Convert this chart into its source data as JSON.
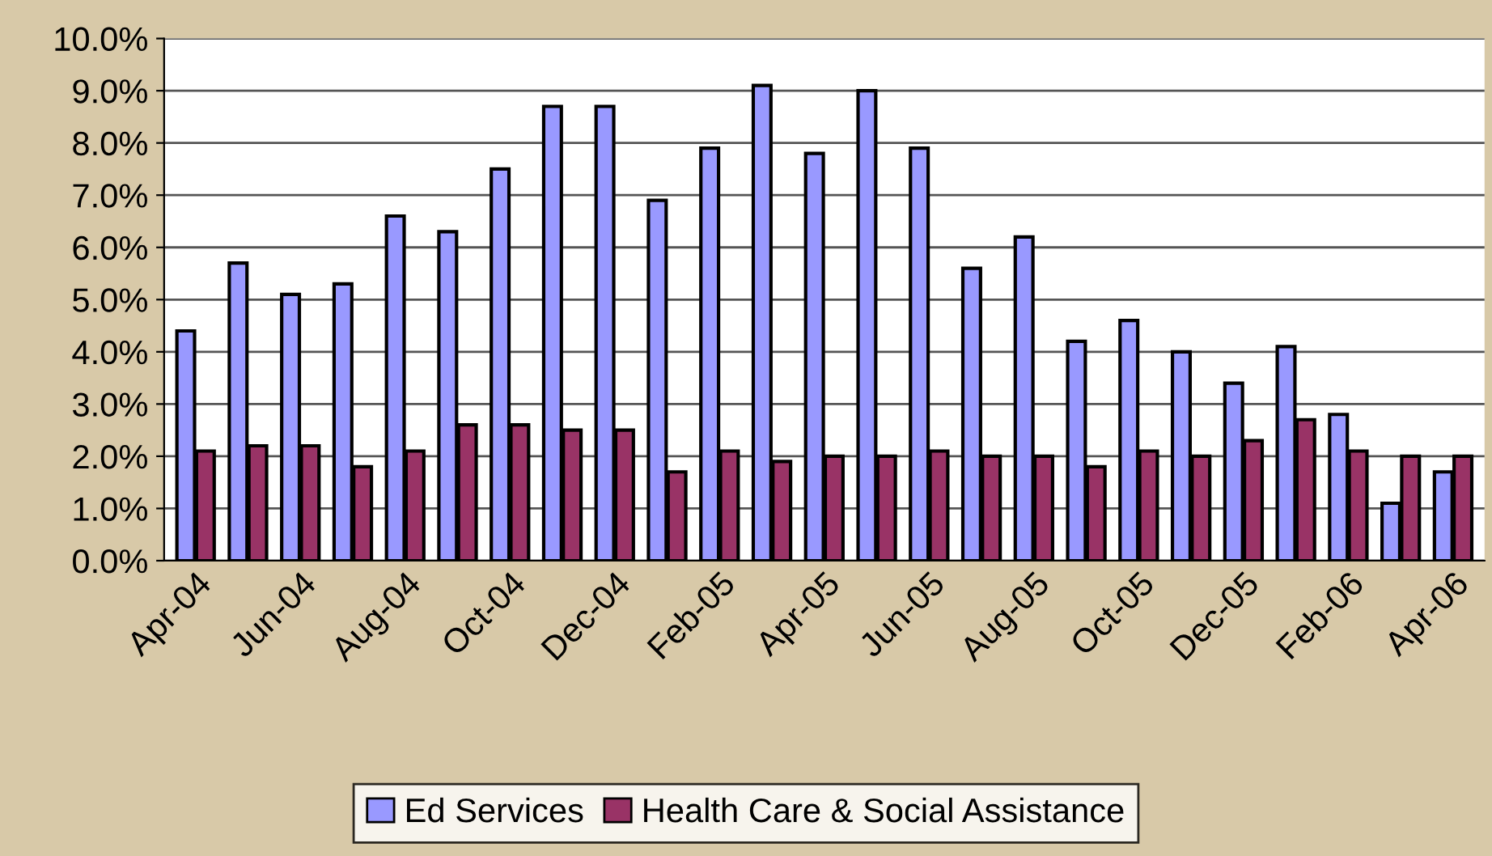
{
  "chart_data": {
    "type": "bar",
    "categories": [
      "Apr-04",
      null,
      "Jun-04",
      null,
      "Aug-04",
      null,
      "Oct-04",
      null,
      "Dec-04",
      null,
      "Feb-05",
      null,
      "Apr-05",
      null,
      "Jun-05",
      null,
      "Aug-05",
      null,
      "Oct-05",
      null,
      "Dec-05",
      null,
      "Feb-06",
      null,
      "Apr-06"
    ],
    "series": [
      {
        "name": "Ed Services",
        "color": "#9999ff",
        "values": [
          4.4,
          5.7,
          5.1,
          5.3,
          6.6,
          6.3,
          7.5,
          8.7,
          8.7,
          6.9,
          7.9,
          9.1,
          7.8,
          9.0,
          7.9,
          5.6,
          6.2,
          4.2,
          4.6,
          4.0,
          3.4,
          4.1,
          2.8,
          1.1,
          1.7
        ]
      },
      {
        "name": "Health Care & Social Assistance",
        "color": "#993366",
        "values": [
          2.1,
          2.2,
          2.2,
          1.8,
          2.1,
          2.6,
          2.6,
          2.5,
          2.5,
          1.7,
          2.1,
          1.9,
          2.0,
          2.0,
          2.1,
          2.0,
          2.0,
          1.8,
          2.1,
          2.0,
          2.3,
          2.7,
          2.1,
          2.0,
          2.0
        ]
      }
    ],
    "ylim": [
      0,
      10
    ],
    "yticks": [
      {
        "value": 0,
        "label": "0.0%"
      },
      {
        "value": 1,
        "label": "1.0%"
      },
      {
        "value": 2,
        "label": "2.0%"
      },
      {
        "value": 3,
        "label": "3.0%"
      },
      {
        "value": 4,
        "label": "4.0%"
      },
      {
        "value": 5,
        "label": "5.0%"
      },
      {
        "value": 6,
        "label": "6.0%"
      },
      {
        "value": 7,
        "label": "7.0%"
      },
      {
        "value": 8,
        "label": "8.0%"
      },
      {
        "value": 9,
        "label": "9.0%"
      },
      {
        "value": 10,
        "label": "10.0%"
      }
    ],
    "grid": "y",
    "legend": "bottom"
  }
}
